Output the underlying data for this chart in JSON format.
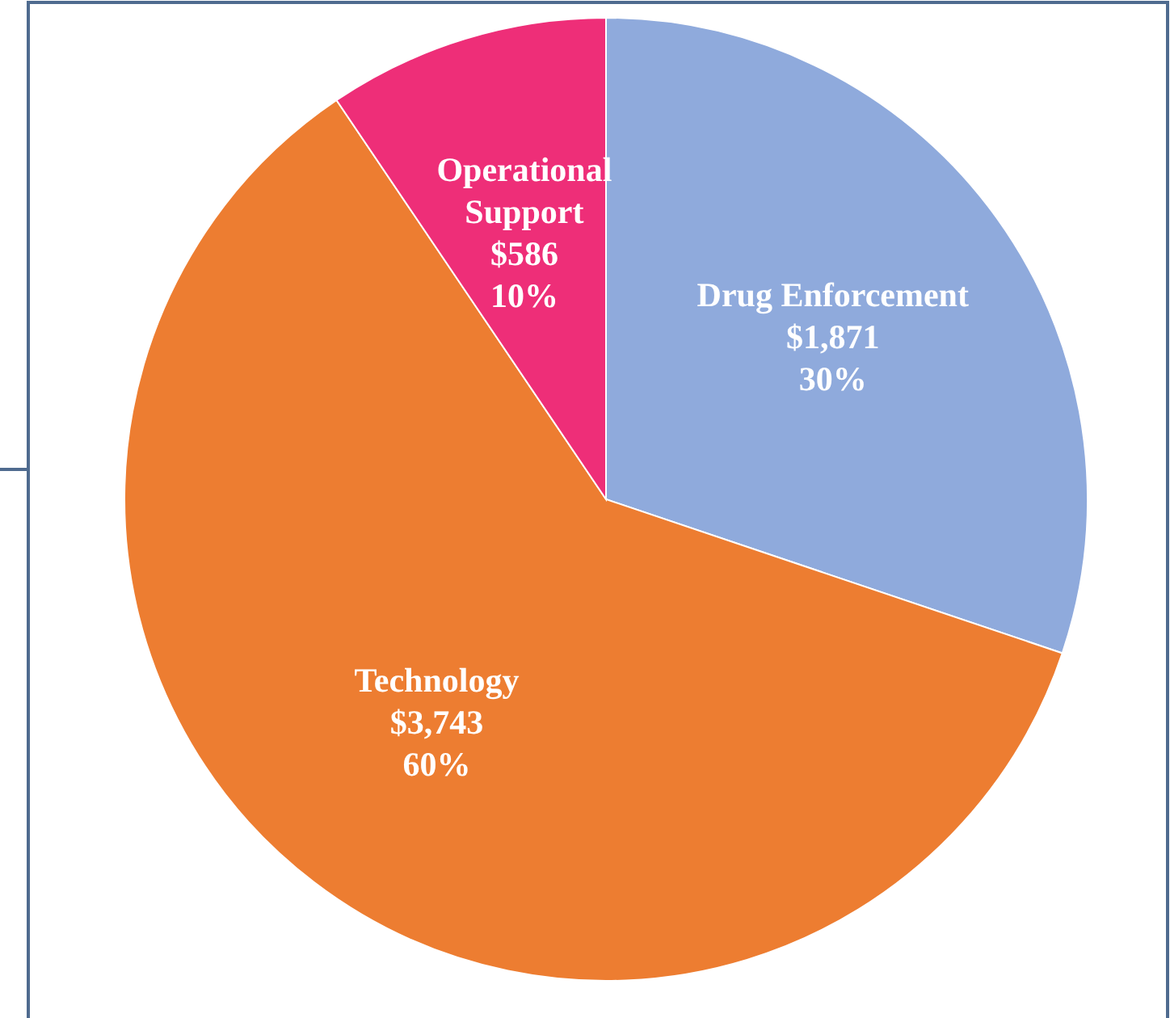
{
  "chart_data": {
    "type": "pie",
    "categories": [
      "Drug Enforcement",
      "Technology",
      "Operational Support"
    ],
    "values": [
      1871,
      3743,
      586
    ],
    "colors": [
      "#8faadc",
      "#ed7d31",
      "#ee2e78"
    ],
    "value_labels": [
      "$1,871\n30%",
      "$3,743\n60%",
      "$586\n10%"
    ],
    "legend": false
  }
}
